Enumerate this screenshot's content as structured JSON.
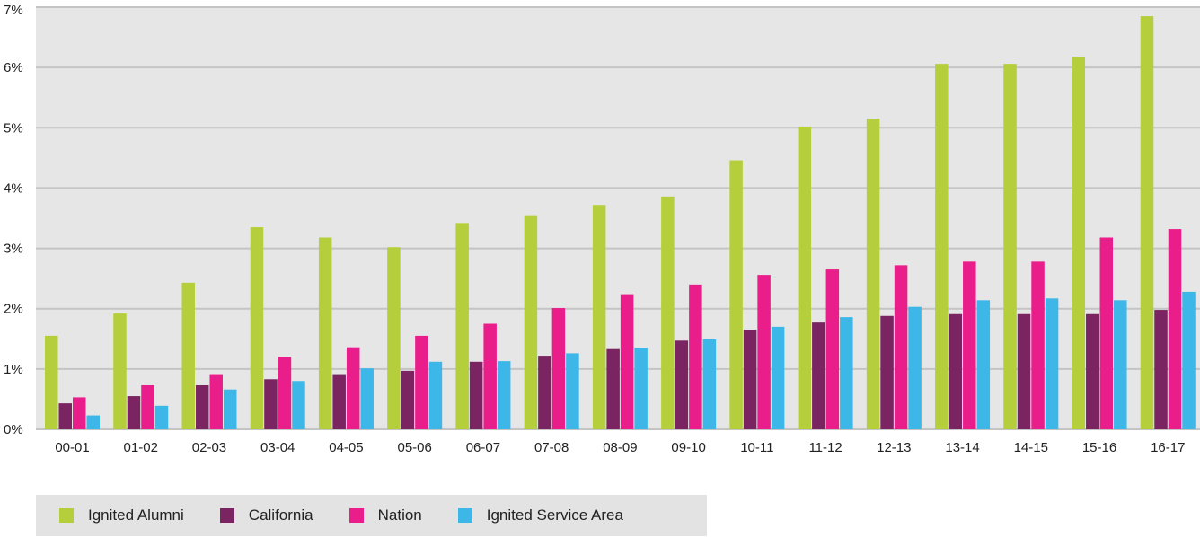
{
  "chart_data": {
    "type": "bar",
    "categories": [
      "00-01",
      "01-02",
      "02-03",
      "03-04",
      "04-05",
      "05-06",
      "06-07",
      "07-08",
      "08-09",
      "09-10",
      "10-11",
      "11-12",
      "12-13",
      "13-14",
      "14-15",
      "15-16",
      "16-17"
    ],
    "series": [
      {
        "name": "Ignited Alumni",
        "color": "#b5cf3c",
        "values": [
          1.55,
          1.92,
          2.43,
          3.35,
          3.18,
          3.02,
          3.42,
          3.55,
          3.72,
          3.86,
          4.46,
          5.02,
          5.15,
          6.06,
          6.06,
          6.18,
          6.85
        ]
      },
      {
        "name": "California",
        "color": "#7a2462",
        "values": [
          0.43,
          0.55,
          0.73,
          0.83,
          0.9,
          0.97,
          1.12,
          1.22,
          1.33,
          1.47,
          1.65,
          1.77,
          1.88,
          1.91,
          1.91,
          1.91,
          1.98
        ]
      },
      {
        "name": "Nation",
        "color": "#e91e8a",
        "values": [
          0.53,
          0.73,
          0.9,
          1.2,
          1.36,
          1.55,
          1.75,
          2.01,
          2.24,
          2.4,
          2.56,
          2.65,
          2.72,
          2.78,
          2.78,
          3.18,
          3.32
        ]
      },
      {
        "name": "Ignited Service Area",
        "color": "#3db6e8",
        "values": [
          0.23,
          0.39,
          0.66,
          0.8,
          1.01,
          1.12,
          1.13,
          1.26,
          1.35,
          1.49,
          1.7,
          1.86,
          2.03,
          2.14,
          2.17,
          2.14,
          2.28
        ]
      }
    ],
    "ylim": [
      0,
      7
    ],
    "yticks": [
      "0%",
      "1%",
      "2%",
      "3%",
      "4%",
      "5%",
      "6%",
      "7%"
    ],
    "grid": true,
    "legend_position": "bottom-left"
  }
}
